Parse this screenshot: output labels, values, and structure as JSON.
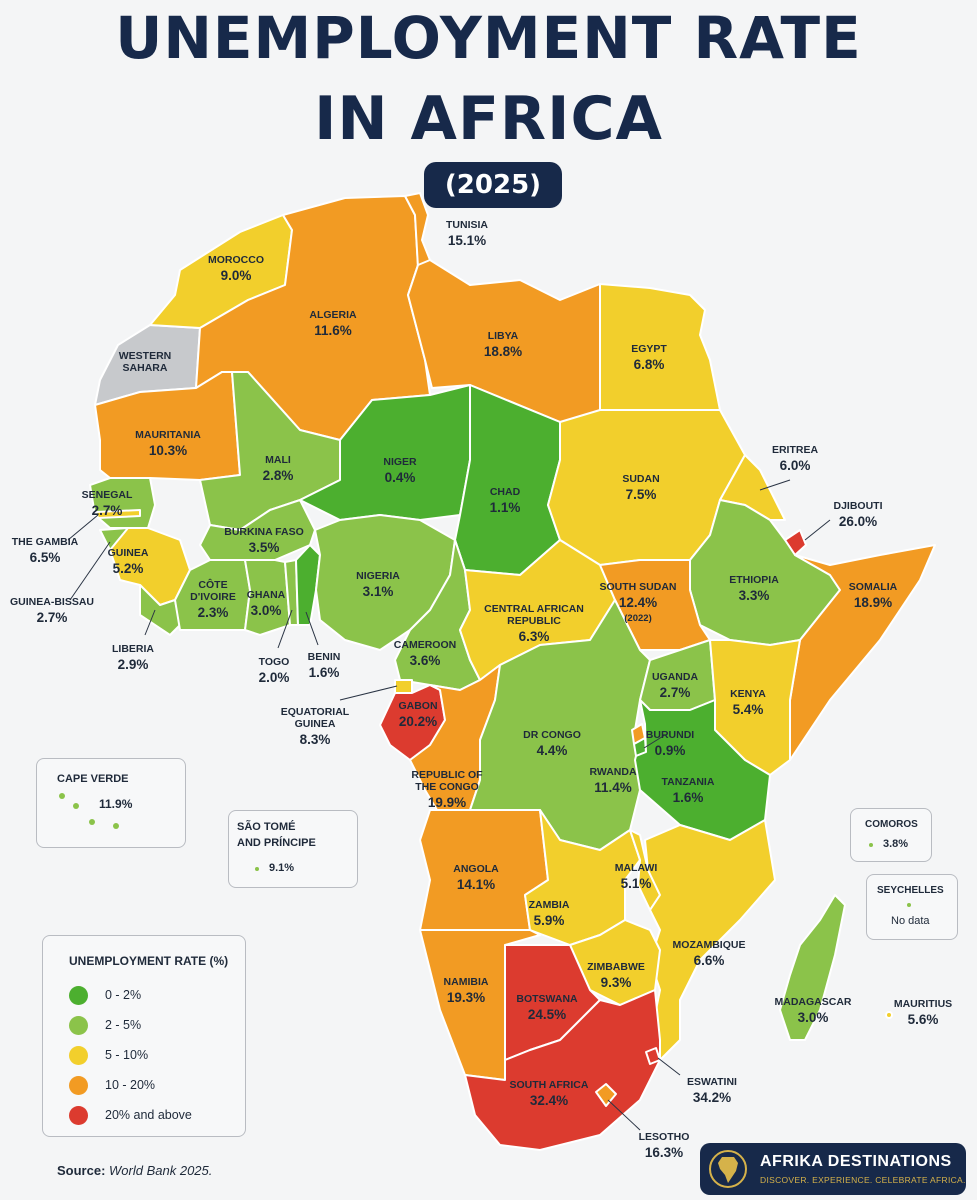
{
  "title": {
    "line1": "UNEMPLOYMENT RATE",
    "line2": "IN AFRICA",
    "year": "(2025)"
  },
  "colors": {
    "bin_0_2": "#4caf2f",
    "bin_2_5": "#8bc34a",
    "bin_5_10": "#f2cf2c",
    "bin_10_20": "#f29b23",
    "bin_20_plus": "#dc3b2f",
    "no_data": "#c7c9cc",
    "navy": "#17294a"
  },
  "countries": [
    {
      "id": "morocco",
      "name": "MOROCCO",
      "value": "9.0%",
      "rate": 9.0
    },
    {
      "id": "algeria",
      "name": "ALGERIA",
      "value": "11.6%",
      "rate": 11.6
    },
    {
      "id": "tunisia",
      "name": "TUNISIA",
      "value": "15.1%",
      "rate": 15.1
    },
    {
      "id": "libya",
      "name": "LIBYA",
      "value": "18.8%",
      "rate": 18.8
    },
    {
      "id": "egypt",
      "name": "EGYPT",
      "value": "6.8%",
      "rate": 6.8
    },
    {
      "id": "western-sahara",
      "name": "WESTERN SAHARA",
      "value": "",
      "rate": null
    },
    {
      "id": "mauritania",
      "name": "MAURITANIA",
      "value": "10.3%",
      "rate": 10.3
    },
    {
      "id": "mali",
      "name": "MALI",
      "value": "2.8%",
      "rate": 2.8
    },
    {
      "id": "niger",
      "name": "NIGER",
      "value": "0.4%",
      "rate": 0.4
    },
    {
      "id": "chad",
      "name": "CHAD",
      "value": "1.1%",
      "rate": 1.1
    },
    {
      "id": "sudan",
      "name": "SUDAN",
      "value": "7.5%",
      "rate": 7.5
    },
    {
      "id": "eritrea",
      "name": "ERITREA",
      "value": "6.0%",
      "rate": 6.0
    },
    {
      "id": "djibouti",
      "name": "DJIBOUTI",
      "value": "26.0%",
      "rate": 26.0
    },
    {
      "id": "senegal",
      "name": "SENEGAL",
      "value": "2.7%",
      "rate": 2.7
    },
    {
      "id": "the-gambia",
      "name": "THE GAMBIA",
      "value": "6.5%",
      "rate": 6.5
    },
    {
      "id": "guinea-bissau",
      "name": "GUINEA-BISSAU",
      "value": "2.7%",
      "rate": 2.7
    },
    {
      "id": "guinea",
      "name": "GUINEA",
      "value": "5.2%",
      "rate": 5.2
    },
    {
      "id": "liberia",
      "name": "LIBERIA",
      "value": "2.9%",
      "rate": 2.9
    },
    {
      "id": "cote-divoire",
      "name": "CÔTE D'IVOIRE",
      "value": "2.3%",
      "rate": 2.3
    },
    {
      "id": "burkina-faso",
      "name": "BURKINA FASO",
      "value": "3.5%",
      "rate": 3.5
    },
    {
      "id": "ghana",
      "name": "GHANA",
      "value": "3.0%",
      "rate": 3.0
    },
    {
      "id": "togo",
      "name": "TOGO",
      "value": "2.0%",
      "rate": 2.0
    },
    {
      "id": "benin",
      "name": "BENIN",
      "value": "1.6%",
      "rate": 1.6
    },
    {
      "id": "nigeria",
      "name": "NIGERIA",
      "value": "3.1%",
      "rate": 3.1
    },
    {
      "id": "cameroon",
      "name": "CAMEROON",
      "value": "3.6%",
      "rate": 3.6
    },
    {
      "id": "central-african-republic",
      "name": "CENTRAL AFRICAN REPUBLIC",
      "value": "6.3%",
      "rate": 6.3
    },
    {
      "id": "south-sudan",
      "name": "SOUTH SUDAN",
      "value": "12.4%",
      "rate": 12.4,
      "note": "(2022)"
    },
    {
      "id": "ethiopia",
      "name": "ETHIOPIA",
      "value": "3.3%",
      "rate": 3.3
    },
    {
      "id": "somalia",
      "name": "SOMALIA",
      "value": "18.9%",
      "rate": 18.9
    },
    {
      "id": "equatorial-guinea",
      "name": "EQUATORIAL GUINEA",
      "value": "8.3%",
      "rate": 8.3
    },
    {
      "id": "gabon",
      "name": "GABON",
      "value": "20.2%",
      "rate": 20.2
    },
    {
      "id": "republic-of-the-congo",
      "name": "REPUBLIC OF THE CONGO",
      "value": "19.9%",
      "rate": 19.9
    },
    {
      "id": "dr-congo",
      "name": "DR CONGO",
      "value": "4.4%",
      "rate": 4.4
    },
    {
      "id": "uganda",
      "name": "UGANDA",
      "value": "2.7%",
      "rate": 2.7
    },
    {
      "id": "kenya",
      "name": "KENYA",
      "value": "5.4%",
      "rate": 5.4
    },
    {
      "id": "burundi",
      "name": "BURUNDI",
      "value": "0.9%",
      "rate": 0.9
    },
    {
      "id": "rwanda",
      "name": "RWANDA",
      "value": "11.4%",
      "rate": 11.4
    },
    {
      "id": "tanzania",
      "name": "TANZANIA",
      "value": "1.6%",
      "rate": 1.6
    },
    {
      "id": "angola",
      "name": "ANGOLA",
      "value": "14.1%",
      "rate": 14.1
    },
    {
      "id": "malawi",
      "name": "MALAWI",
      "value": "5.1%",
      "rate": 5.1
    },
    {
      "id": "zambia",
      "name": "ZAMBIA",
      "value": "5.9%",
      "rate": 5.9
    },
    {
      "id": "mozambique",
      "name": "MOZAMBIQUE",
      "value": "6.6%",
      "rate": 6.6
    },
    {
      "id": "zimbabwe",
      "name": "ZIMBABWE",
      "value": "9.3%",
      "rate": 9.3
    },
    {
      "id": "namibia",
      "name": "NAMIBIA",
      "value": "19.3%",
      "rate": 19.3
    },
    {
      "id": "botswana",
      "name": "BOTSWANA",
      "value": "24.5%",
      "rate": 24.5
    },
    {
      "id": "south-africa",
      "name": "SOUTH AFRICA",
      "value": "32.4%",
      "rate": 32.4
    },
    {
      "id": "eswatini",
      "name": "ESWATINI",
      "value": "34.2%",
      "rate": 34.2
    },
    {
      "id": "lesotho",
      "name": "LESOTHO",
      "value": "16.3%",
      "rate": 16.3
    },
    {
      "id": "madagascar",
      "name": "MADAGASCAR",
      "value": "3.0%",
      "rate": 3.0
    },
    {
      "id": "mauritius",
      "name": "MAURITIUS",
      "value": "5.6%",
      "rate": 5.6
    }
  ],
  "insets": {
    "cape_verde": {
      "name": "CAPE VERDE",
      "value": "11.9%"
    },
    "sao_tome": {
      "name_line1": "SÃO TOMÉ",
      "name_line2": "AND PRÍNCIPE",
      "value": "9.1%"
    },
    "comoros": {
      "name": "COMOROS",
      "value": "3.8%"
    },
    "seychelles": {
      "name": "SEYCHELLES",
      "value": "No data"
    }
  },
  "legend": {
    "title": "UNEMPLOYMENT RATE (%)",
    "items": [
      {
        "label": "0 - 2%",
        "color": "#4caf2f"
      },
      {
        "label": "2 - 5%",
        "color": "#8bc34a"
      },
      {
        "label": "5 - 10%",
        "color": "#f2cf2c"
      },
      {
        "label": "10 - 20%",
        "color": "#f29b23"
      },
      {
        "label": "20% and above",
        "color": "#dc3b2f"
      }
    ]
  },
  "source": {
    "label": "Source:",
    "text": "World Bank 2025."
  },
  "brand": {
    "name": "AFRIKA DESTINATIONS",
    "tagline": "DISCOVER. EXPERIENCE. CELEBRATE AFRICA."
  }
}
